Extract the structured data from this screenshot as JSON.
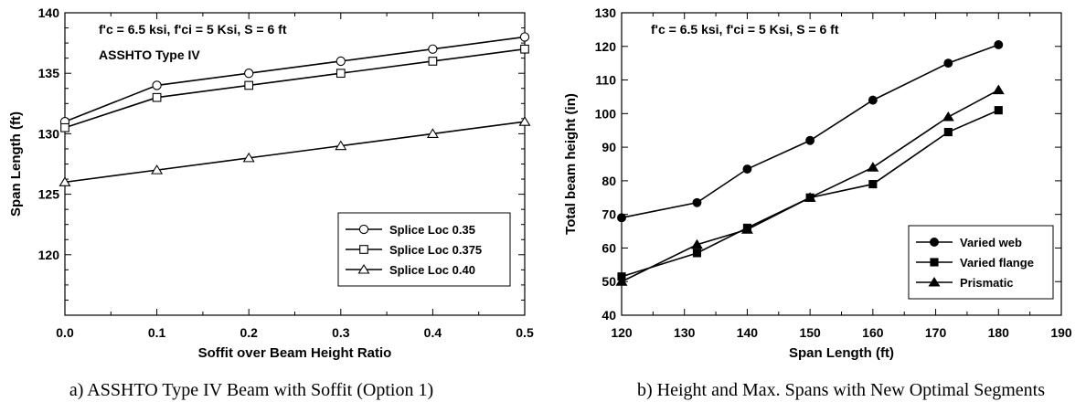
{
  "chart_data": [
    {
      "type": "line",
      "annotations": [
        "f'c = 6.5 ksi,   f'ci = 5 Ksi,   S = 6 ft",
        "ASSHTO Type IV"
      ],
      "xlabel": "Soffit over Beam Height Ratio",
      "ylabel": "Span Length (ft)",
      "xlim": [
        0,
        0.5
      ],
      "ylim": [
        115,
        140
      ],
      "x_ticks": [
        0.0,
        0.1,
        0.2,
        0.3,
        0.4,
        0.5
      ],
      "x_tick_labels": [
        "0.0",
        "0.1",
        "0.2",
        "0.3",
        "0.4",
        "0.5"
      ],
      "y_ticks": [
        120,
        125,
        130,
        135,
        140
      ],
      "y_tick_labels": [
        "120",
        "125",
        "130",
        "135",
        "140"
      ],
      "x": [
        0.0,
        0.1,
        0.2,
        0.3,
        0.4,
        0.5
      ],
      "legend_position": "center-right",
      "grid": false,
      "caption": "a) ASSHTO Type IV Beam with Soffit (Option 1)",
      "series": [
        {
          "name": "Splice Loc 0.35",
          "marker": "open-circle",
          "values": [
            131,
            134,
            135,
            136,
            137,
            138
          ]
        },
        {
          "name": "Splice Loc 0.375",
          "marker": "open-square",
          "values": [
            130.5,
            133,
            134,
            135,
            136,
            137
          ]
        },
        {
          "name": "Splice Loc 0.40",
          "marker": "open-triangle",
          "values": [
            126,
            127,
            128,
            129,
            130,
            131
          ]
        }
      ]
    },
    {
      "type": "line",
      "annotations": [
        "f'c = 6.5 ksi,   f'ci = 5 Ksi,   S = 6 ft"
      ],
      "xlabel": "Span Length (ft)",
      "ylabel": "Total beam height (in)",
      "xlim": [
        120,
        190
      ],
      "ylim": [
        40,
        130
      ],
      "x_ticks": [
        120,
        130,
        140,
        150,
        160,
        170,
        180,
        190
      ],
      "x_tick_labels": [
        "120",
        "130",
        "140",
        "150",
        "160",
        "170",
        "180",
        "190"
      ],
      "y_ticks": [
        40,
        50,
        60,
        70,
        80,
        90,
        100,
        110,
        120,
        130
      ],
      "y_tick_labels": [
        "40",
        "50",
        "60",
        "70",
        "80",
        "90",
        "100",
        "110",
        "120",
        "130"
      ],
      "legend_position": "lower-right",
      "grid": false,
      "caption": "b) Height and Max. Spans with New Optimal Segments",
      "series": [
        {
          "name": "Varied web",
          "marker": "filled-circle",
          "x": [
            120,
            132,
            140,
            150,
            160,
            172,
            180
          ],
          "values": [
            69,
            73.5,
            83.5,
            92,
            104,
            115,
            120.5
          ]
        },
        {
          "name": "Varied flange",
          "marker": "filled-square",
          "x": [
            120,
            132,
            140,
            150,
            160,
            172,
            180
          ],
          "values": [
            51.5,
            58.5,
            66,
            75,
            79,
            94.5,
            101
          ]
        },
        {
          "name": "Prismatic",
          "marker": "filled-triangle",
          "x": [
            120,
            132,
            140,
            150,
            160,
            172,
            180
          ],
          "values": [
            50,
            61,
            65.5,
            75,
            84,
            99,
            107
          ]
        }
      ]
    }
  ]
}
